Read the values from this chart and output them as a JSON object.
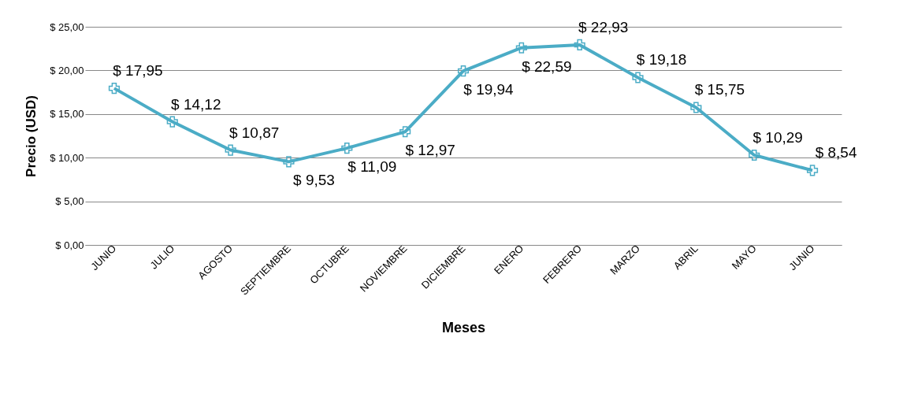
{
  "chart_data": {
    "type": "line",
    "xlabel": "Meses",
    "ylabel": "Precio (USD)",
    "categories": [
      "JUNIO",
      "JULIO",
      "AGOSTO",
      "SEPTIEMBRE",
      "OCTUBRE",
      "NOVIEMBRE",
      "DICIEMBRE",
      "ENERO",
      "FEBRERO",
      "MARZO",
      "ABRIL",
      "MAYO",
      "JUNIO"
    ],
    "series": [
      {
        "color": "#4bacc6",
        "values": [
          17.95,
          14.12,
          10.87,
          9.53,
          11.09,
          12.97,
          19.94,
          22.59,
          22.93,
          19.18,
          15.75,
          10.29,
          8.54
        ],
        "value_labels": [
          "$ 17,95",
          "$ 14,12",
          "$ 10,87",
          "$ 9,53",
          "$ 11,09",
          "$ 12,97",
          "$ 19,94",
          "$ 22,59",
          "$ 22,93",
          "$ 19,18",
          "$ 15,75",
          "$ 10,29",
          "$ 8,54"
        ]
      }
    ],
    "ylim": [
      0,
      25
    ],
    "yticks": [
      {
        "value": 0,
        "label": "$ 0,00"
      },
      {
        "value": 5,
        "label": "$ 5,00"
      },
      {
        "value": 10,
        "label": "$ 10,00"
      },
      {
        "value": 15,
        "label": "$ 15,00"
      },
      {
        "value": 20,
        "label": "$ 20,00"
      },
      {
        "value": 25,
        "label": "$ 25,00"
      }
    ],
    "grid": "y",
    "marker": "cross",
    "line_style": "solid"
  }
}
